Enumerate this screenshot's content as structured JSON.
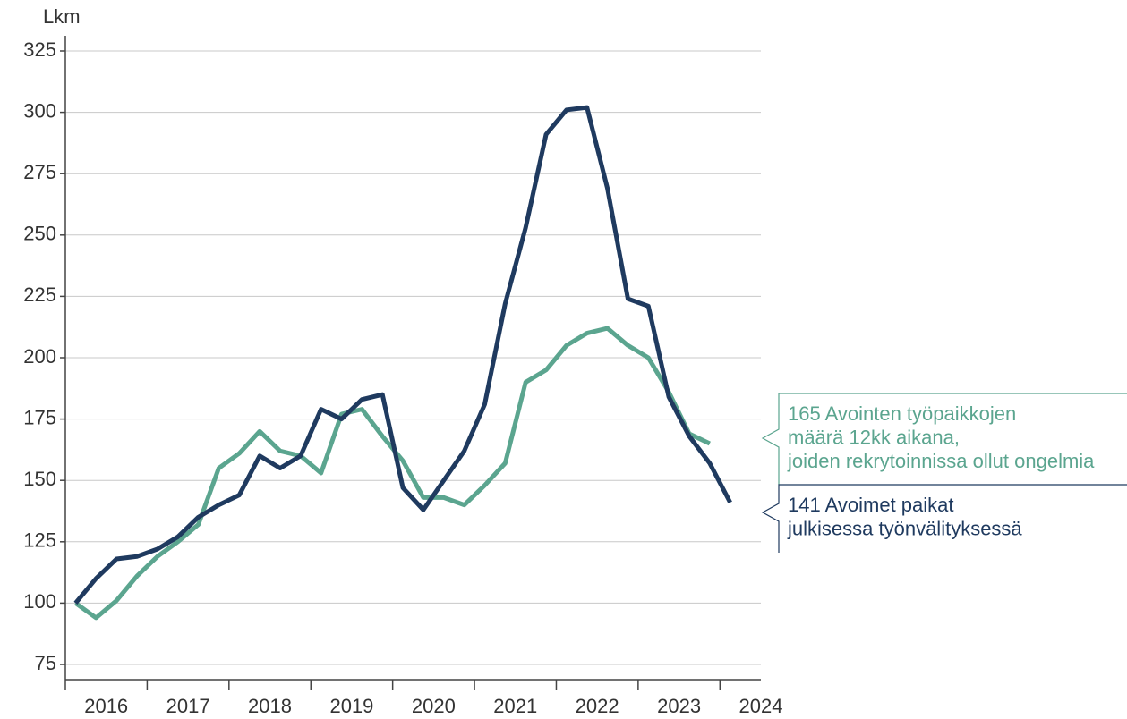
{
  "chart_data": {
    "type": "line",
    "y_label": "Lkm",
    "x": [
      2016.125,
      2016.375,
      2016.625,
      2016.875,
      2017.125,
      2017.375,
      2017.625,
      2017.875,
      2018.125,
      2018.375,
      2018.625,
      2018.875,
      2019.125,
      2019.375,
      2019.625,
      2019.875,
      2020.125,
      2020.375,
      2020.625,
      2020.875,
      2021.125,
      2021.375,
      2021.625,
      2021.875,
      2022.125,
      2022.375,
      2022.625,
      2022.875,
      2023.125,
      2023.375,
      2023.625,
      2023.875,
      2024.125
    ],
    "xlim": [
      2016,
      2024.5
    ],
    "xticks": [
      2016,
      2017,
      2018,
      2019,
      2020,
      2021,
      2022,
      2023,
      2024
    ],
    "ylim": [
      75,
      325
    ],
    "yticks": [
      75,
      100,
      125,
      150,
      175,
      200,
      225,
      250,
      275,
      300,
      325
    ],
    "grid": true,
    "series": [
      {
        "color": "#1f3a5f",
        "values": [
          100,
          110,
          118,
          119,
          122,
          127,
          135,
          140,
          144,
          160,
          155,
          160,
          179,
          175,
          183,
          185,
          147,
          138,
          150,
          162,
          181,
          222,
          253,
          291,
          301,
          302,
          269,
          224,
          221,
          184,
          168,
          157,
          141
        ],
        "annotation": [
          "141 Avoimet paikat",
          "julkisessa työnvälityksessä"
        ]
      },
      {
        "color": "#5ba58f",
        "values": [
          100,
          94,
          101,
          111,
          119,
          125,
          132,
          155,
          161,
          170,
          162,
          160,
          153,
          177,
          179,
          168,
          158,
          143,
          143,
          140,
          148,
          157,
          190,
          195,
          205,
          210,
          212,
          205,
          200,
          186,
          169,
          165,
          null
        ],
        "annotation": [
          "165 Avointen työpaikkojen",
          "määrä 12kk aikana,",
          "joiden rekrytoinnissa ollut ongelmia"
        ]
      }
    ]
  }
}
